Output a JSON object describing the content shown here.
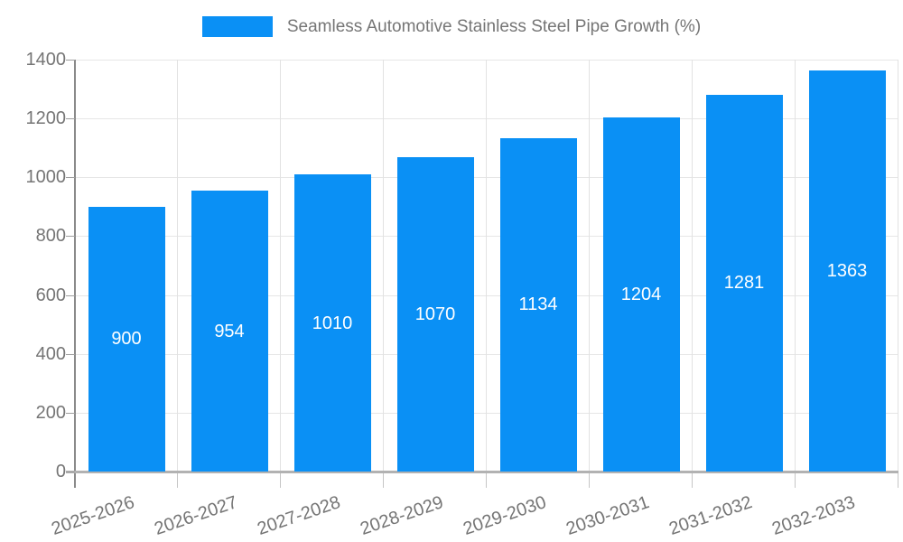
{
  "chart_data": {
    "type": "bar",
    "title": "",
    "series_name": "Seamless Automotive Stainless Steel Pipe Growth (%)",
    "categories": [
      "2025-2026",
      "2026-2027",
      "2027-2028",
      "2028-2029",
      "2029-2030",
      "2030-2031",
      "2031-2032",
      "2032-2033"
    ],
    "values": [
      900,
      954,
      1010,
      1070,
      1134,
      1204,
      1281,
      1363
    ],
    "xlabel": "",
    "ylabel": "",
    "ylim": [
      0,
      1400
    ],
    "ytick_step": 200,
    "grid": true,
    "legend_position": "top",
    "bar_color": "#0a90f5",
    "value_label_color": "#ffffff",
    "axis_text_color": "#757575"
  }
}
